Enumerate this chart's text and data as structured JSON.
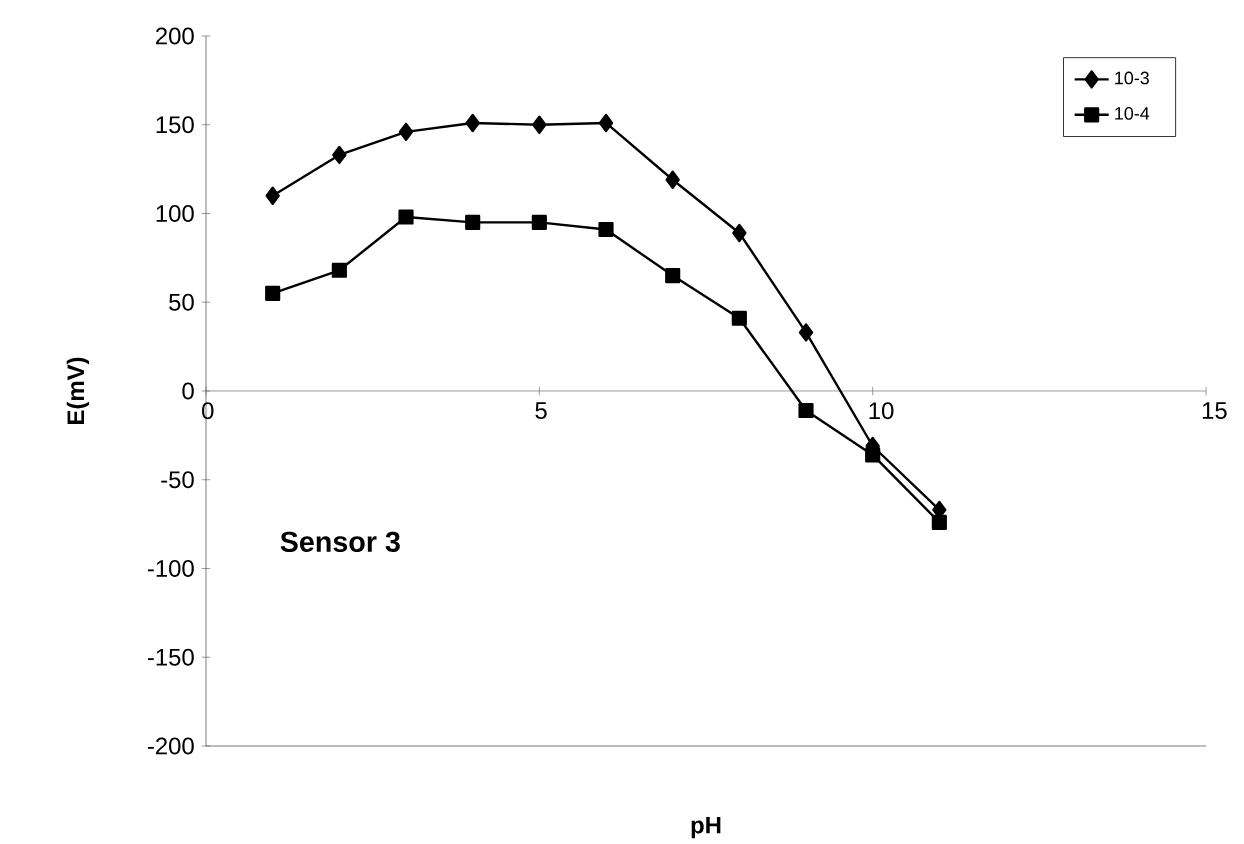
{
  "chart_data": {
    "type": "line",
    "xlabel": "pH",
    "ylabel": "E(mV)",
    "annotations": [
      "Sensor 3"
    ],
    "x": [
      1,
      2,
      3,
      4,
      5,
      6,
      7,
      8,
      9,
      10,
      11
    ],
    "series": [
      {
        "name": "10-3",
        "color": "#000000",
        "marker": "diamond",
        "values": [
          110,
          133,
          146,
          151,
          150,
          151,
          119,
          89,
          33,
          -31,
          -67
        ]
      },
      {
        "name": "10-4",
        "color": "#000000",
        "marker": "square",
        "values": [
          55,
          68,
          98,
          95,
          95,
          91,
          65,
          41,
          -11,
          -36,
          -74
        ]
      }
    ],
    "xlim": [
      0,
      15
    ],
    "ylim": [
      -200,
      200
    ],
    "xticks": [
      0,
      5,
      10,
      15
    ],
    "yticks": [
      -200,
      -150,
      -100,
      -50,
      0,
      50,
      100,
      150,
      200
    ],
    "legend": "top right",
    "grid": false,
    "line_style": "solid"
  }
}
